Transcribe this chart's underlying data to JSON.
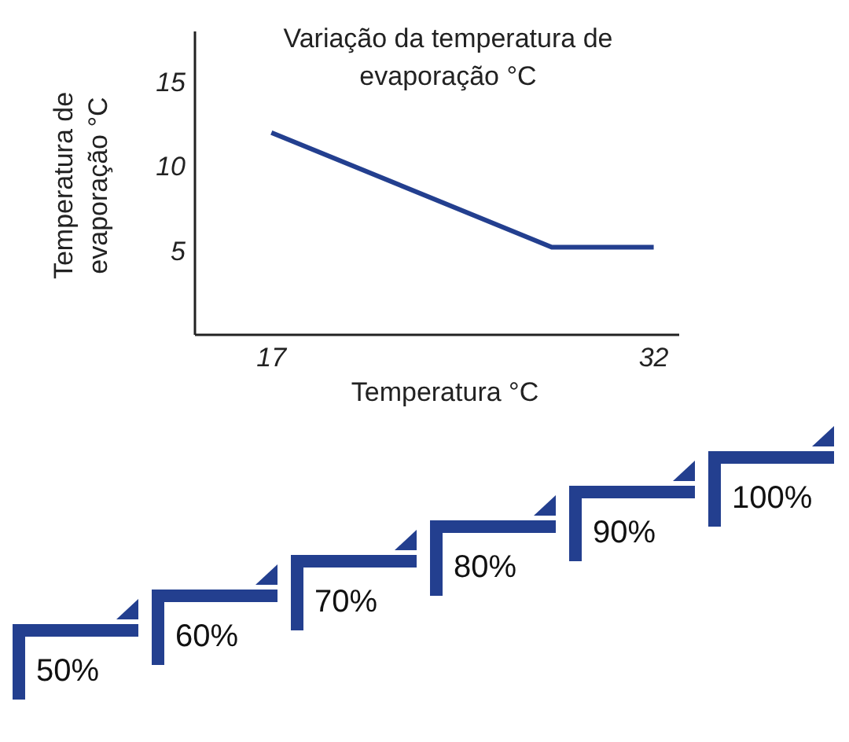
{
  "chart_data": {
    "type": "line",
    "title": "Variação da temperatura de evaporação °C",
    "xlabel": "Temperatura °C",
    "ylabel": "Temperatura de evaporação °C",
    "x": [
      17,
      28,
      32
    ],
    "series": [
      {
        "color": "#233f8f",
        "values": [
          12,
          5.2,
          5.2
        ]
      }
    ],
    "xlim": [
      14,
      33
    ],
    "ylim": [
      0,
      18
    ],
    "xticks": [
      17,
      32
    ],
    "yticks": [
      5,
      10,
      15
    ],
    "line_style": "solid",
    "annotations": [
      "50%",
      "60%",
      "70%",
      "80%",
      "90%",
      "100%"
    ]
  }
}
